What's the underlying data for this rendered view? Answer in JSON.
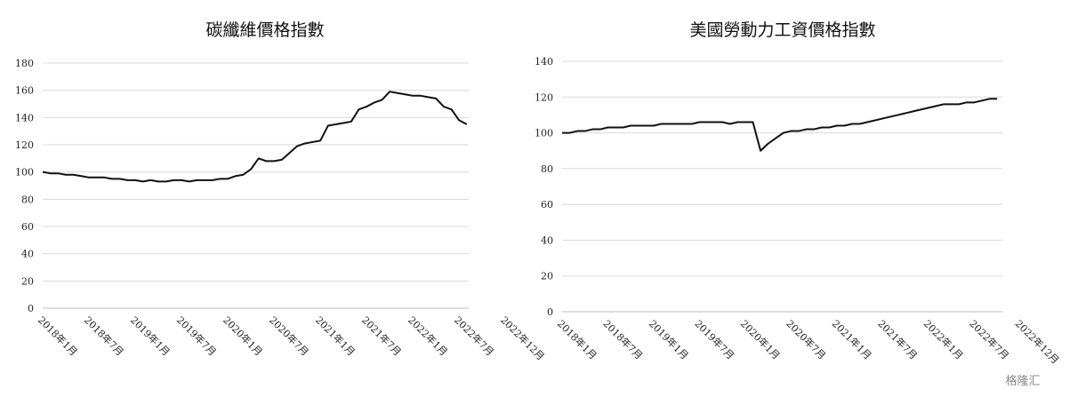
{
  "chart_data": [
    {
      "type": "line",
      "title": "碳纖維價格指數",
      "categories": [
        "2018年1月",
        null,
        null,
        null,
        null,
        null,
        "2018年7月",
        null,
        null,
        null,
        null,
        null,
        "2019年1月",
        null,
        null,
        null,
        null,
        null,
        "2019年7月",
        null,
        null,
        null,
        null,
        null,
        "2020年1月",
        null,
        null,
        null,
        null,
        null,
        "2020年7月",
        null,
        null,
        null,
        null,
        null,
        "2021年1月",
        null,
        null,
        null,
        null,
        null,
        "2021年7月",
        null,
        null,
        null,
        null,
        null,
        "2022年1月",
        null,
        null,
        null,
        null,
        null,
        "2022年7月",
        null,
        null,
        null,
        null,
        null,
        "2022年12月"
      ],
      "series": [
        {
          "color": "#111111",
          "values": [
            100,
            99,
            99,
            98,
            98,
            97,
            96,
            96,
            96,
            95,
            95,
            94,
            94,
            93,
            94,
            93,
            93,
            94,
            94,
            93,
            94,
            94,
            94,
            95,
            95,
            97,
            98,
            102,
            110,
            108,
            108,
            109,
            114,
            119,
            121,
            122,
            123,
            134,
            135,
            136,
            137,
            146,
            148,
            151,
            153,
            159,
            158,
            157,
            156,
            156,
            155,
            154,
            148,
            146,
            138,
            135,
            null,
            null,
            null,
            null,
            null
          ]
        }
      ],
      "ylim": [
        0,
        180
      ],
      "yticks": [
        0,
        20,
        40,
        60,
        80,
        100,
        120,
        140,
        160,
        180
      ],
      "grid": true
    },
    {
      "type": "line",
      "title": "美國勞動力工資價格指數",
      "categories": [
        "2018年1月",
        null,
        null,
        null,
        null,
        null,
        "2018年7月",
        null,
        null,
        null,
        null,
        null,
        "2019年1月",
        null,
        null,
        null,
        null,
        null,
        "2019年7月",
        null,
        null,
        null,
        null,
        null,
        "2020年1月",
        null,
        null,
        null,
        null,
        null,
        "2020年7月",
        null,
        null,
        null,
        null,
        null,
        "2021年1月",
        null,
        null,
        null,
        null,
        null,
        "2021年7月",
        null,
        null,
        null,
        null,
        null,
        "2022年1月",
        null,
        null,
        null,
        null,
        null,
        "2022年7月",
        null,
        null,
        null,
        null,
        null,
        "2022年12月"
      ],
      "series": [
        {
          "color": "#111111",
          "values": [
            100,
            100,
            101,
            101,
            102,
            102,
            103,
            103,
            103,
            104,
            104,
            104,
            104,
            105,
            105,
            105,
            105,
            105,
            106,
            106,
            106,
            106,
            105,
            106,
            106,
            106,
            90,
            94,
            97,
            100,
            101,
            101,
            102,
            102,
            103,
            103,
            104,
            104,
            105,
            105,
            106,
            107,
            108,
            109,
            110,
            111,
            112,
            113,
            114,
            115,
            116,
            116,
            116,
            117,
            117,
            118,
            119,
            119,
            null,
            null,
            null
          ]
        }
      ],
      "ylim": [
        0,
        140
      ],
      "yticks": [
        0,
        20,
        40,
        60,
        80,
        100,
        120,
        140
      ],
      "grid": true
    }
  ],
  "watermark": "格隆汇"
}
